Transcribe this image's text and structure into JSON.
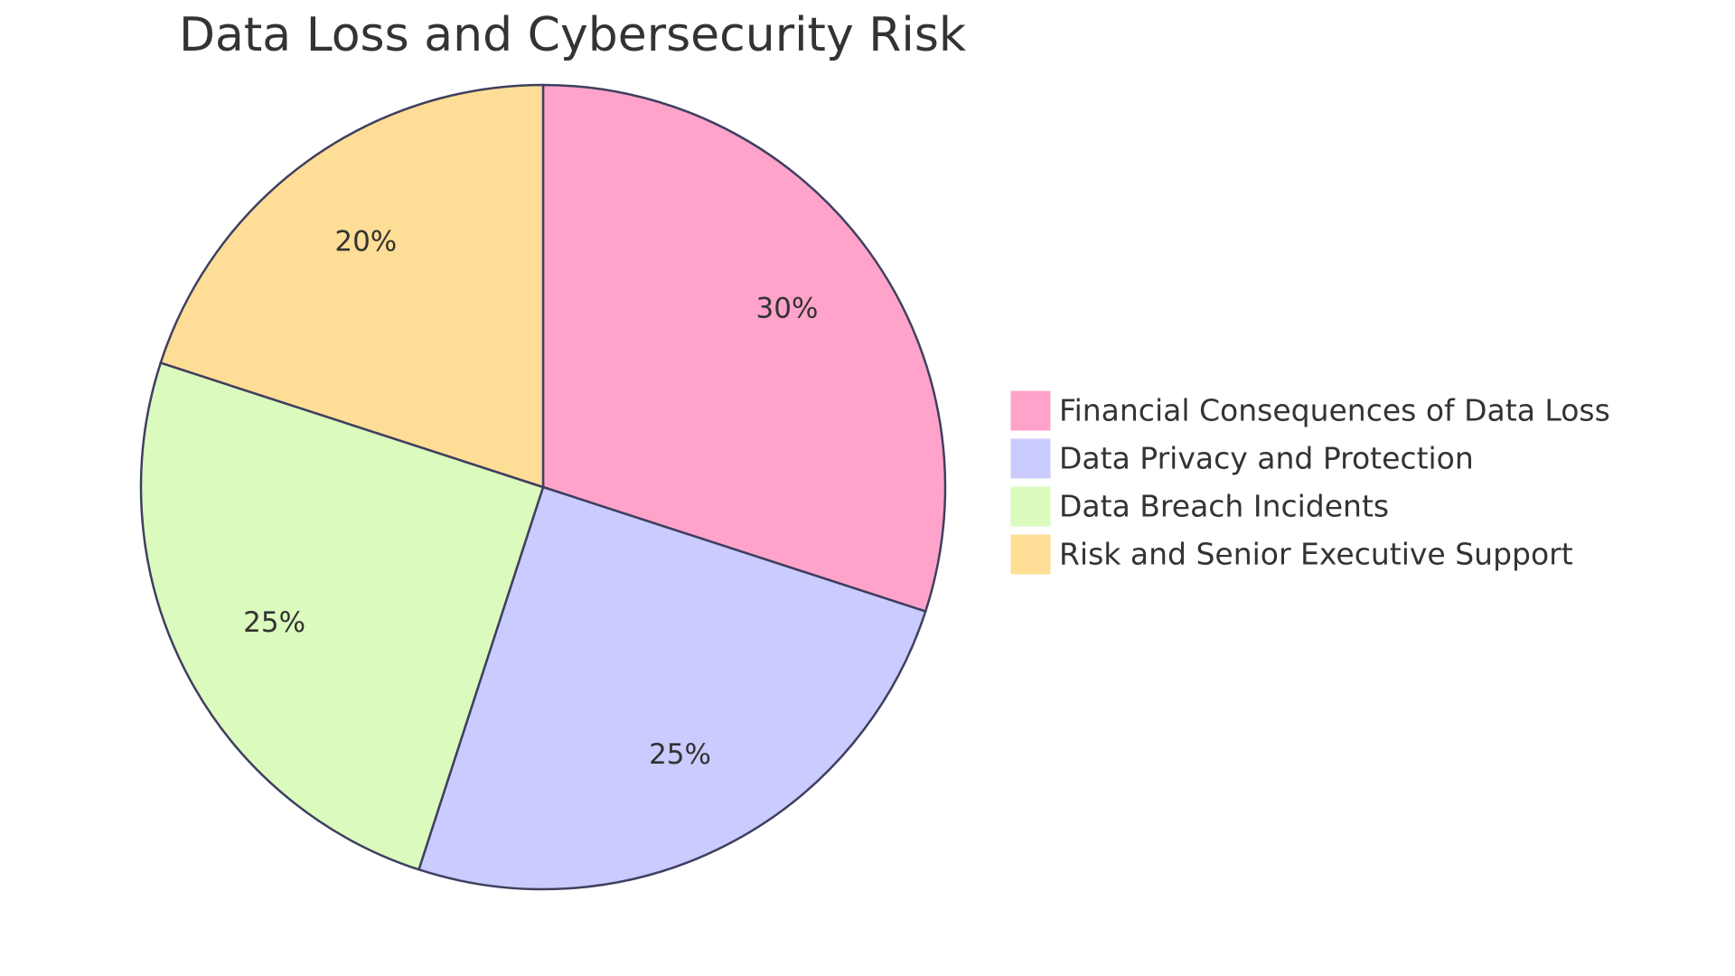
{
  "chart_data": {
    "type": "pie",
    "title": "Data Loss and Cybersecurity Risk",
    "categories": [
      "Financial Consequences of Data Loss",
      "Data Privacy and Protection",
      "Data Breach Incidents",
      "Risk and Senior Executive Support"
    ],
    "values": [
      30,
      25,
      25,
      20
    ],
    "value_labels": [
      "30%",
      "25%",
      "25%",
      "20%"
    ],
    "colors": [
      "#FFA3CB",
      "#CACBFF",
      "#DBFABD",
      "#FEDD96"
    ],
    "legend": "right"
  }
}
